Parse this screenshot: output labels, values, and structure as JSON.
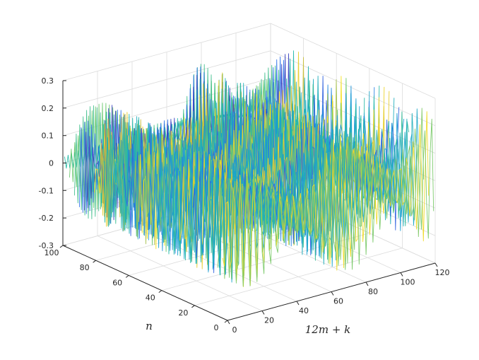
{
  "chart_data": {
    "type": "line",
    "plot_style": "3d-mesh-rows",
    "xlabel": "12m + k",
    "ylabel": "n",
    "zlabel": "",
    "xlim": [
      0,
      120
    ],
    "ylim": [
      0,
      100
    ],
    "zlim": [
      -0.3,
      0.3
    ],
    "x_ticks": [
      "0",
      "20",
      "40",
      "60",
      "80",
      "100",
      "120"
    ],
    "y_ticks": [
      "0",
      "20",
      "40",
      "60",
      "80",
      "100"
    ],
    "z_ticks": [
      "-0.3",
      "-0.2",
      "-0.1",
      "0",
      "0.1",
      "0.2",
      "0.3"
    ],
    "x_tick_values": [
      0,
      20,
      40,
      60,
      80,
      100,
      120
    ],
    "y_tick_values": [
      0,
      20,
      40,
      60,
      80,
      100
    ],
    "z_tick_values": [
      -0.3,
      -0.2,
      -0.1,
      0,
      0.1,
      0.2,
      0.3
    ],
    "grid": true,
    "colormap": [
      "#3e26a8",
      "#2d6ee9",
      "#1a9fd4",
      "#22b9a5",
      "#6fc96a",
      "#d9ba32",
      "#f9e61e"
    ],
    "rows": {
      "n_min": 1,
      "n_max": 100,
      "x_min": 1,
      "x_max": 120,
      "amplitude_range": [
        0.05,
        0.29
      ],
      "value_formula": "z(n, x) = A(x) * cos(pi * x * (0.5 + n / 200) + n / 7) with A ranging 0.05-0.29"
    }
  }
}
